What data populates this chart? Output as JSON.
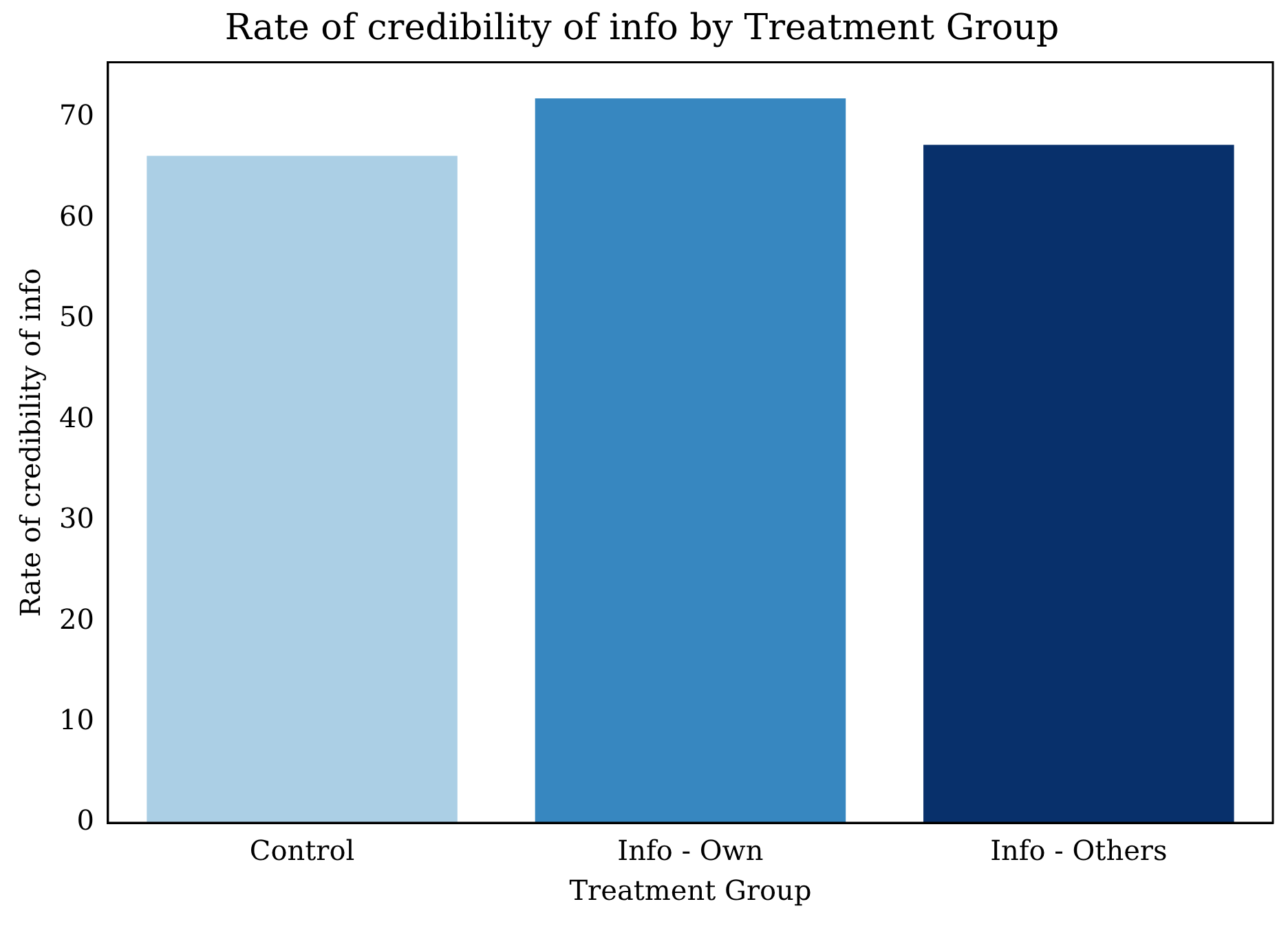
{
  "chart_data": {
    "type": "bar",
    "title": "Rate of credibility of info by Treatment Group",
    "xlabel": "Treatment Group",
    "ylabel": "Rate of credibility of info",
    "categories": [
      "Control",
      "Info - Own",
      "Info - Others"
    ],
    "values": [
      66.2,
      71.9,
      67.3
    ],
    "colors": [
      "#abcfe5",
      "#3787c0",
      "#08306b"
    ],
    "ylim": [
      0,
      75.5
    ],
    "yticks": [
      0,
      10,
      20,
      30,
      40,
      50,
      60,
      70
    ],
    "grid": false,
    "legend": false
  }
}
